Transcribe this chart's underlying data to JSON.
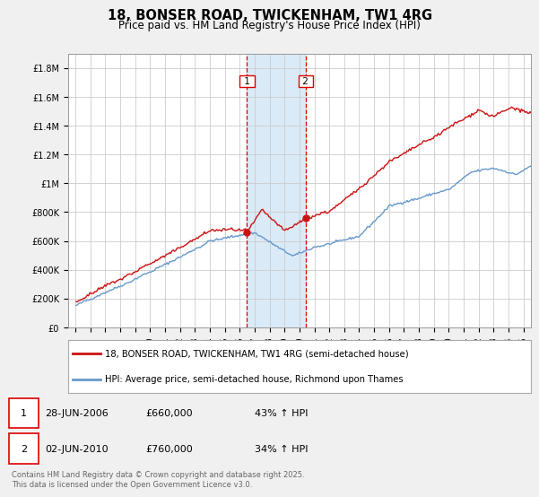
{
  "title": "18, BONSER ROAD, TWICKENHAM, TW1 4RG",
  "subtitle": "Price paid vs. HM Land Registry's House Price Index (HPI)",
  "ylabel_ticks": [
    "£0",
    "£200K",
    "£400K",
    "£600K",
    "£800K",
    "£1M",
    "£1.2M",
    "£1.4M",
    "£1.6M",
    "£1.8M"
  ],
  "ytick_values": [
    0,
    200000,
    400000,
    600000,
    800000,
    1000000,
    1200000,
    1400000,
    1600000,
    1800000
  ],
  "ylim": [
    0,
    1900000
  ],
  "xlim_start": 1994.5,
  "xlim_end": 2025.5,
  "xticks": [
    1995,
    1996,
    1997,
    1998,
    1999,
    2000,
    2001,
    2002,
    2003,
    2004,
    2005,
    2006,
    2007,
    2008,
    2009,
    2010,
    2011,
    2012,
    2013,
    2014,
    2015,
    2016,
    2017,
    2018,
    2019,
    2020,
    2021,
    2022,
    2023,
    2024,
    2025
  ],
  "sale1_x": 2006.49,
  "sale1_y": 660000,
  "sale2_x": 2010.42,
  "sale2_y": 760000,
  "vline1_x": 2006.49,
  "vline2_x": 2010.42,
  "shade_color": "#daeaf7",
  "vline_color": "#dd0000",
  "line1_color": "#cc1111",
  "line2_color": "#6699cc",
  "legend_line1": "18, BONSER ROAD, TWICKENHAM, TW1 4RG (semi-detached house)",
  "legend_line2": "HPI: Average price, semi-detached house, Richmond upon Thames",
  "table_row1": [
    "1",
    "28-JUN-2006",
    "£660,000",
    "43% ↑ HPI"
  ],
  "table_row2": [
    "2",
    "02-JUN-2010",
    "£760,000",
    "34% ↑ HPI"
  ],
  "footer": "Contains HM Land Registry data © Crown copyright and database right 2025.\nThis data is licensed under the Open Government Licence v3.0.",
  "background_color": "#f0f0f0",
  "plot_bg_color": "#ffffff",
  "grid_color": "#cccccc",
  "title_fontsize": 10.5,
  "subtitle_fontsize": 8.5,
  "tick_fontsize": 7,
  "marker_size": 5
}
